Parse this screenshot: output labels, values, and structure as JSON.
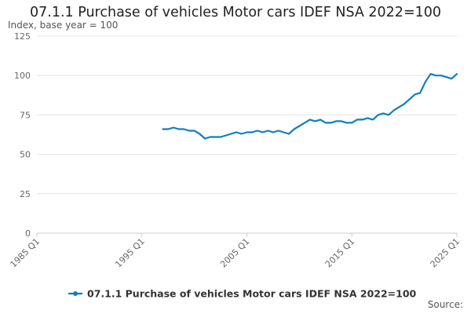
{
  "chart_data": {
    "type": "line",
    "title": "07.1.1 Purchase of vehicles Motor cars IDEF NSA 2022=100",
    "ylabel": "Index, base year = 100",
    "xlabel": "",
    "ylim": [
      0,
      125
    ],
    "yticks": [
      0,
      25,
      50,
      75,
      100,
      125
    ],
    "xlim": [
      "1985 Q1",
      "2025 Q1"
    ],
    "xticks": [
      "1985 Q1",
      "1995 Q1",
      "2005 Q1",
      "2015 Q1",
      "2025 Q1"
    ],
    "grid": true,
    "legend_position": "bottom",
    "series": [
      {
        "name": "07.1.1 Purchase of vehicles Motor cars IDEF NSA 2022=100",
        "color": "#0f7fbd",
        "x": [
          "1997 Q1",
          "1997 Q3",
          "1998 Q1",
          "1998 Q3",
          "1999 Q1",
          "1999 Q3",
          "2000 Q1",
          "2000 Q3",
          "2001 Q1",
          "2001 Q3",
          "2002 Q1",
          "2002 Q3",
          "2003 Q1",
          "2003 Q3",
          "2004 Q1",
          "2004 Q3",
          "2005 Q1",
          "2005 Q3",
          "2006 Q1",
          "2006 Q3",
          "2007 Q1",
          "2007 Q3",
          "2008 Q1",
          "2008 Q3",
          "2009 Q1",
          "2009 Q3",
          "2010 Q1",
          "2010 Q3",
          "2011 Q1",
          "2011 Q3",
          "2012 Q1",
          "2012 Q3",
          "2013 Q1",
          "2013 Q3",
          "2014 Q1",
          "2014 Q3",
          "2015 Q1",
          "2015 Q3",
          "2016 Q1",
          "2016 Q3",
          "2017 Q1",
          "2017 Q3",
          "2018 Q1",
          "2018 Q3",
          "2019 Q1",
          "2019 Q3",
          "2020 Q1",
          "2020 Q3",
          "2021 Q1",
          "2021 Q3",
          "2022 Q1",
          "2022 Q3",
          "2023 Q1",
          "2023 Q3",
          "2024 Q1",
          "2024 Q3",
          "2025 Q1"
        ],
        "values": [
          66,
          66,
          67,
          66,
          66,
          65,
          65,
          63,
          60,
          61,
          61,
          61,
          62,
          63,
          64,
          63,
          64,
          64,
          65,
          64,
          65,
          64,
          65,
          64,
          63,
          66,
          68,
          70,
          72,
          71,
          72,
          70,
          70,
          71,
          71,
          70,
          70,
          72,
          72,
          73,
          72,
          75,
          76,
          75,
          78,
          80,
          82,
          85,
          88,
          89,
          96,
          101,
          100,
          100,
          99,
          98,
          101
        ]
      }
    ]
  },
  "source_label": "Source:"
}
